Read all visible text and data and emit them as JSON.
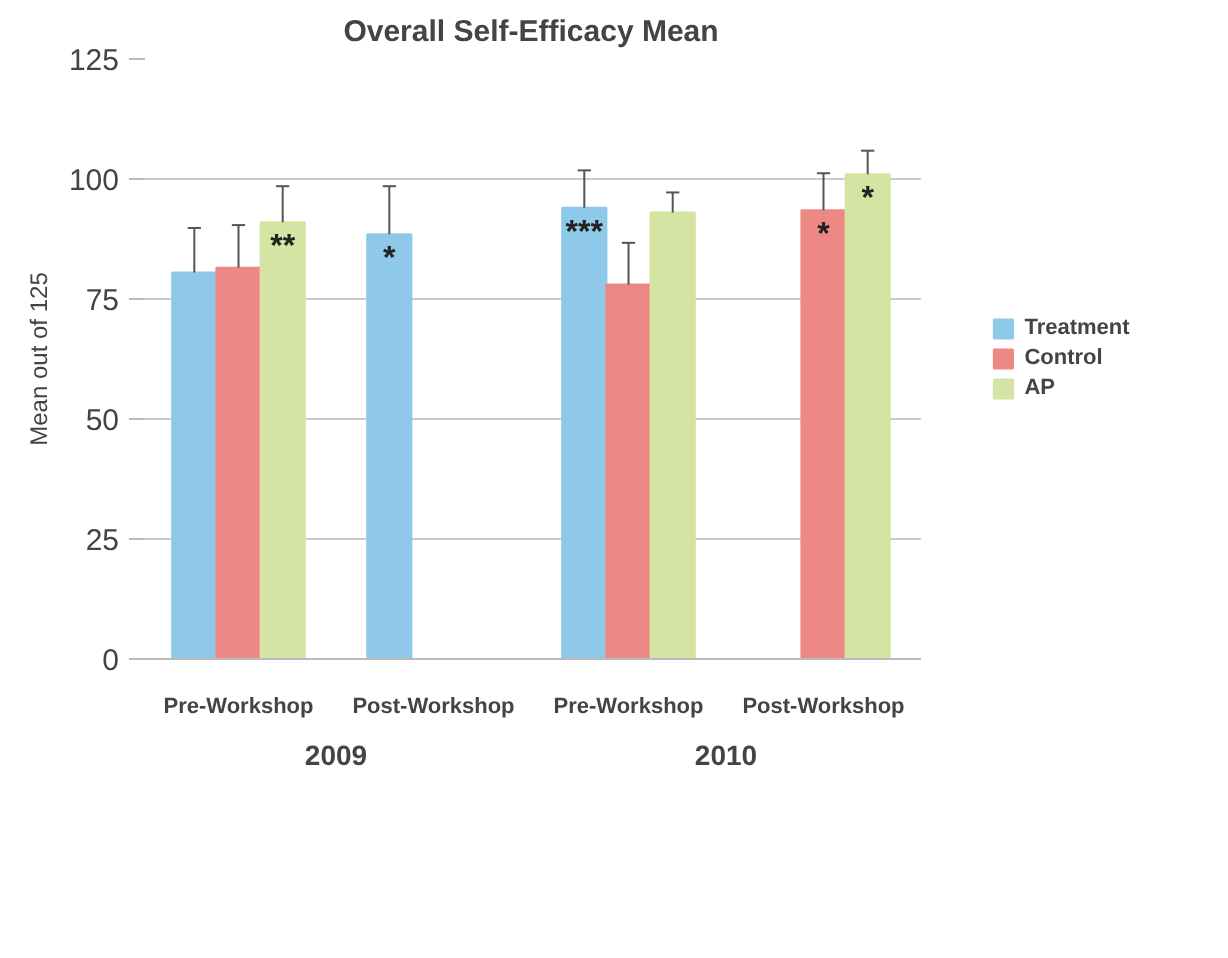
{
  "chart_data": {
    "type": "bar",
    "title": "Overall Self-Efficacy Mean",
    "ylabel": "Mean out of 125",
    "categories": [
      "Pre-Workshop",
      "Post-Workshop",
      "Pre-Workshop",
      "Post-Workshop"
    ],
    "annotations": [
      "2009",
      "2010"
    ],
    "series": [
      {
        "name": "Treatment",
        "color": "#8ec9e9",
        "values": [
          80.5,
          88.5,
          94,
          null
        ],
        "errors": [
          [
            80.5,
            89.8
          ],
          [
            88.5,
            98.5
          ],
          [
            94,
            101.8
          ],
          null
        ],
        "value_labels": [
          null,
          "*",
          "***",
          null
        ]
      },
      {
        "name": "Control",
        "color": "#ee8884",
        "values": [
          81.5,
          null,
          78,
          93.5
        ],
        "errors": [
          [
            81.5,
            90.4
          ],
          null,
          [
            78,
            86.7
          ],
          [
            93.5,
            101.2
          ]
        ],
        "value_labels": [
          null,
          null,
          null,
          "*"
        ]
      },
      {
        "name": "AP",
        "color": "#d5e4a2",
        "values": [
          91,
          null,
          93,
          101
        ],
        "errors": [
          [
            91,
            98.5
          ],
          null,
          [
            93,
            97.2
          ],
          [
            101,
            105.9
          ]
        ],
        "value_labels": [
          "**",
          null,
          null,
          "*"
        ]
      }
    ],
    "ylim": [
      0,
      125
    ],
    "yticks": [
      0,
      25,
      50,
      75,
      100,
      125
    ],
    "grid": "y",
    "legend": "right"
  }
}
